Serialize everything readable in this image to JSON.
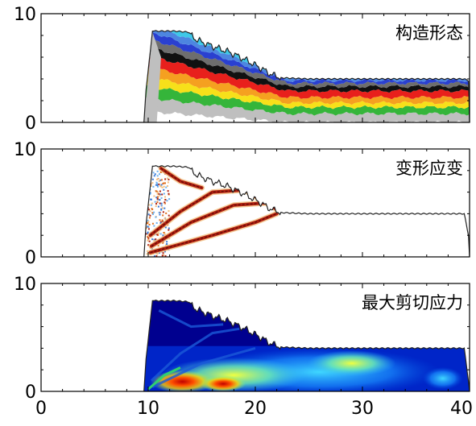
{
  "chart_data": [
    {
      "type": "area",
      "title": "构造形态",
      "xlim": [
        0,
        40
      ],
      "ylim": [
        0,
        10
      ],
      "yticks": [
        "0",
        "10"
      ],
      "surface": {
        "x": [
          9.6,
          9.8,
          10.4,
          12.5,
          13.8,
          14.5,
          16,
          17.5,
          19,
          20.5,
          21.5,
          22.5,
          25,
          30,
          35,
          39.5,
          40
        ],
        "y": [
          0,
          3,
          8.4,
          8.4,
          8.3,
          7.6,
          7.0,
          6.5,
          5.8,
          5.0,
          4.4,
          4.1,
          4.0,
          4.0,
          4.0,
          4.0,
          3.8
        ]
      },
      "layer_colors": [
        "#bfbfbf",
        "#35b53a",
        "#f7e01a",
        "#f5a020",
        "#e8201c",
        "#111111",
        "#6e6e6e",
        "#2a40d0",
        "#4d86e0",
        "#3ec8e8"
      ]
    },
    {
      "type": "area",
      "title": "变形应变",
      "xlim": [
        0,
        40
      ],
      "ylim": [
        0,
        10
      ],
      "yticks": [
        "0",
        "10"
      ],
      "surface": {
        "x": [
          9.6,
          9.8,
          10.4,
          12.5,
          13.8,
          14.5,
          16,
          17.5,
          19,
          20.5,
          21.5,
          22.5,
          25,
          30,
          35,
          39.5,
          40
        ],
        "y": [
          0,
          3,
          8.4,
          8.4,
          8.3,
          7.6,
          7.0,
          6.5,
          5.8,
          5.0,
          4.4,
          4.1,
          4.0,
          4.0,
          4.0,
          4.0,
          1.5
        ]
      },
      "bands": [
        {
          "x": [
            10.2,
            13,
            16,
            19,
            21
          ],
          "y": [
            2.0,
            4.2,
            6.0,
            6.2,
            5.0
          ]
        },
        {
          "x": [
            10.3,
            14,
            18,
            21,
            22
          ],
          "y": [
            1.0,
            3.2,
            4.8,
            5.0,
            4.4
          ]
        },
        {
          "x": [
            10.2,
            16,
            20,
            22
          ],
          "y": [
            0.4,
            2.0,
            3.2,
            4.0
          ]
        },
        {
          "x": [
            11.2,
            13,
            15
          ],
          "y": [
            8.2,
            7.0,
            6.4
          ]
        }
      ],
      "strain_colors": [
        "#f2c080",
        "#e07020",
        "#b02010",
        "#5a0a05"
      ]
    },
    {
      "type": "heatmap",
      "title": "最大剪切应力",
      "xlim": [
        0,
        40
      ],
      "ylim": [
        0,
        10
      ],
      "xticks": [
        "0",
        "10",
        "20",
        "30",
        "40"
      ],
      "yticks": [
        "0",
        "10"
      ],
      "surface": {
        "x": [
          9.6,
          9.8,
          10.4,
          12.5,
          13.8,
          14.5,
          16,
          17.5,
          19,
          20.5,
          21.5,
          22.5,
          25,
          30,
          35,
          39.5,
          40
        ],
        "y": [
          0,
          3,
          8.4,
          8.4,
          8.3,
          7.6,
          7.0,
          6.5,
          5.8,
          5.0,
          4.4,
          4.1,
          4.0,
          4.0,
          4.0,
          4.0,
          0.2
        ]
      },
      "colormap": [
        "#00008f",
        "#0025c8",
        "#0070ff",
        "#25c0ff",
        "#7fffa0",
        "#f0ff30",
        "#ffb000",
        "#ff4000",
        "#b00000"
      ]
    }
  ]
}
